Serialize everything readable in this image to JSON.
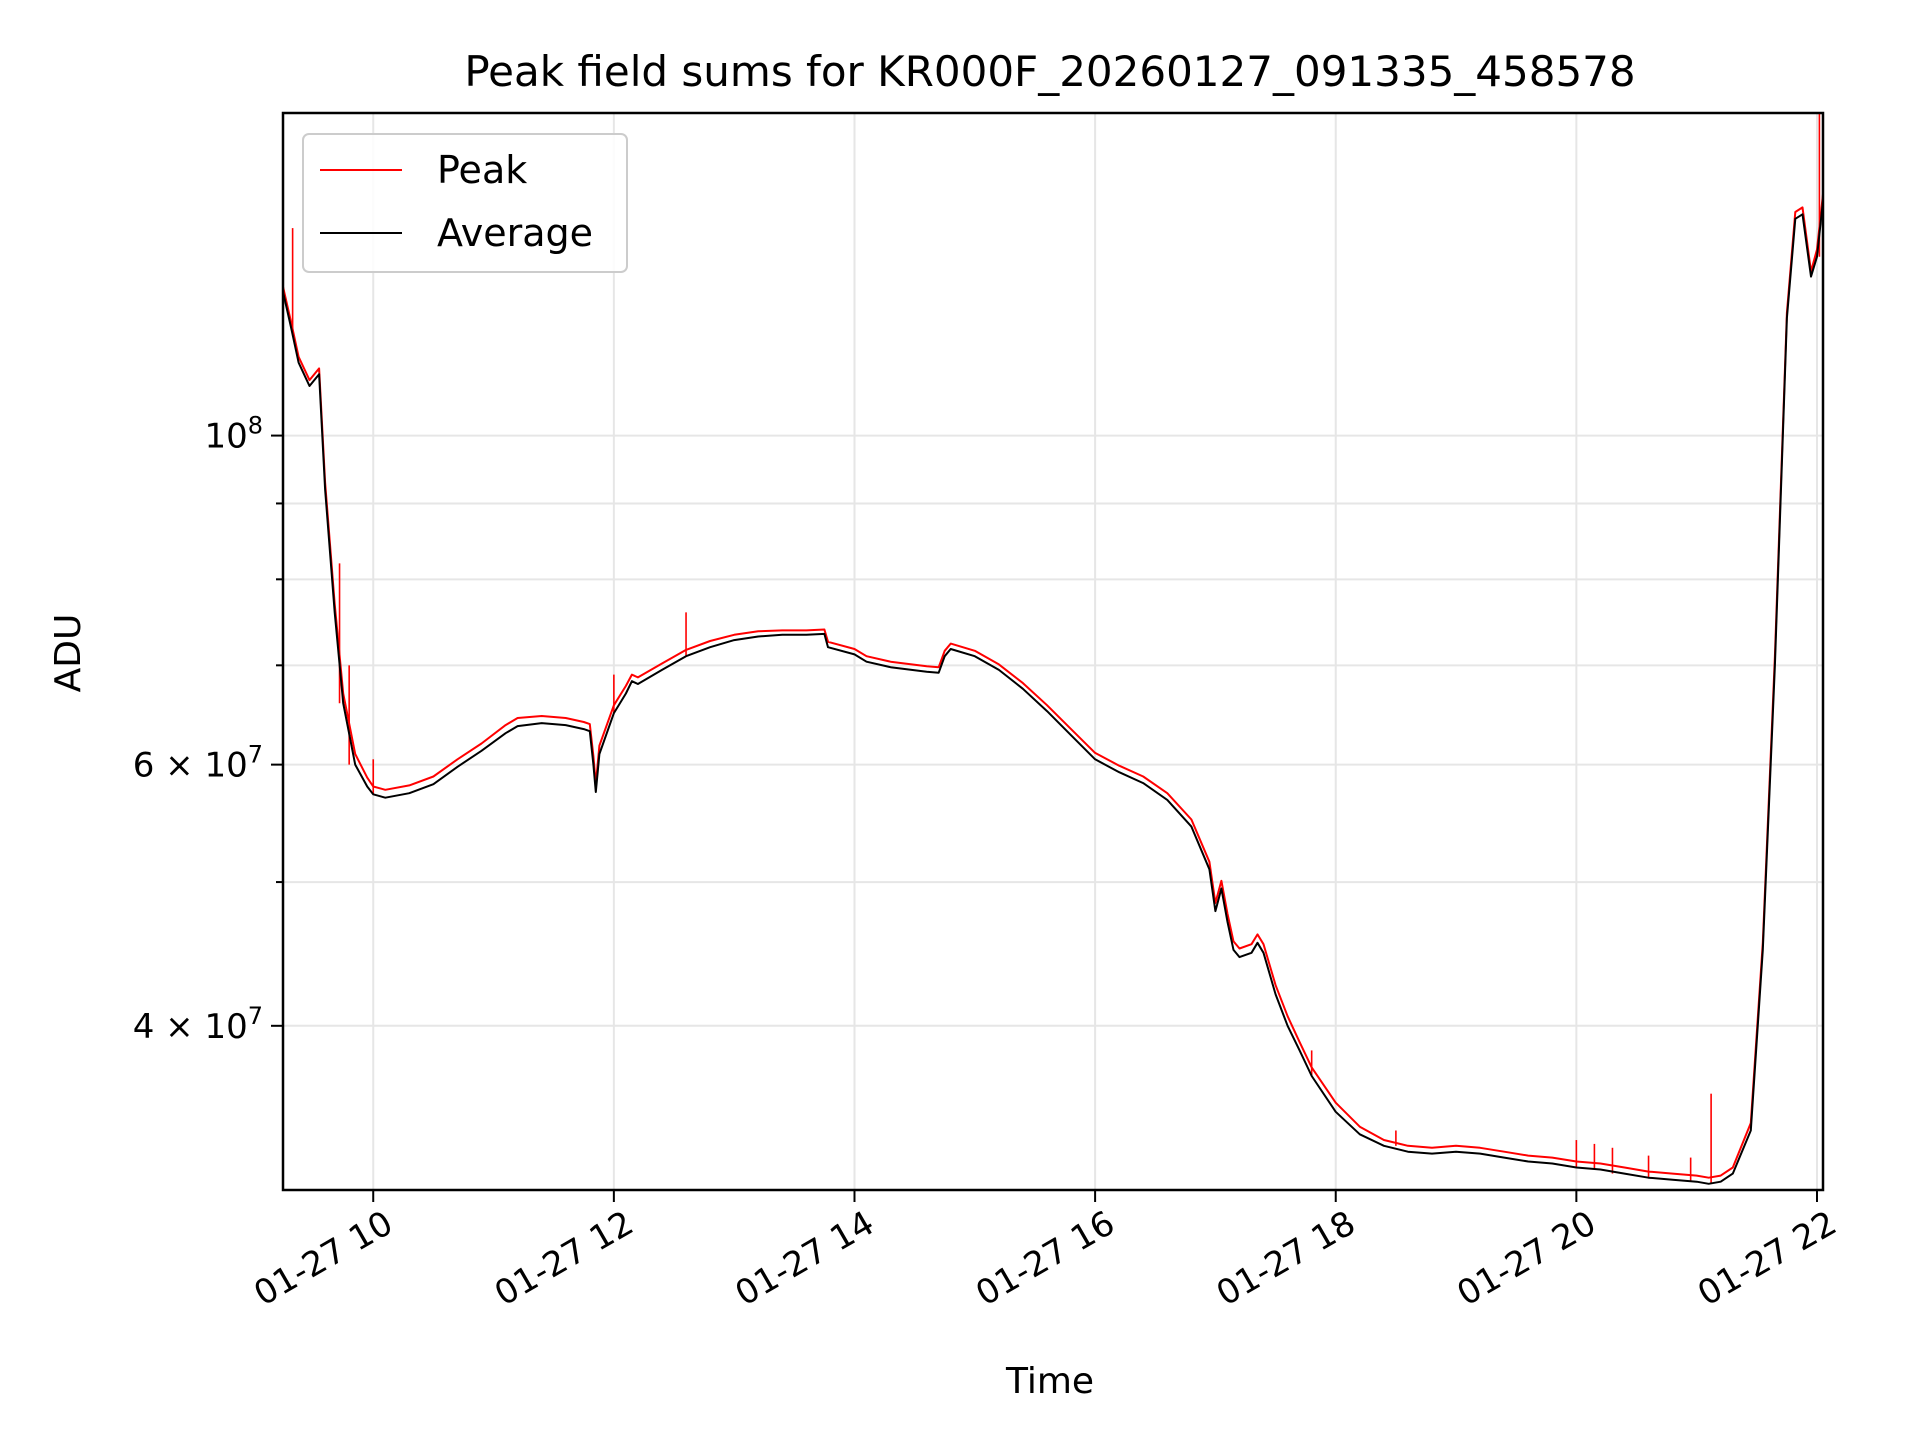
{
  "chart_data": {
    "type": "line",
    "title": "Peak field sums for KR000F_20260127_091335_458578",
    "xlabel": "Time",
    "ylabel": "ADU",
    "yscale": "log",
    "xlim": [
      9.25,
      22.05
    ],
    "ylim": [
      31000000,
      165000000
    ],
    "grid": true,
    "legend_position": "top-left",
    "x_ticks": [
      10,
      12,
      14,
      16,
      18,
      20,
      22
    ],
    "x_tick_labels": [
      "01-27 10",
      "01-27 12",
      "01-27 14",
      "01-27 16",
      "01-27 18",
      "01-27 20",
      "01-27 22"
    ],
    "y_ticks_major": [
      {
        "value": 100000000,
        "mantissa": "",
        "base": "10",
        "exp": "8"
      },
      {
        "value": 60000000,
        "mantissa": "6",
        "base": "10",
        "exp": "7"
      },
      {
        "value": 40000000,
        "mantissa": "4",
        "base": "10",
        "exp": "7"
      }
    ],
    "y_ticks_minor": [
      30000000,
      50000000,
      70000000,
      80000000,
      90000000
    ],
    "series": [
      {
        "name": "Peak",
        "color": "#ff0000"
      },
      {
        "name": "Average",
        "color": "#000000"
      }
    ],
    "x": [
      9.25,
      9.32,
      9.38,
      9.47,
      9.55,
      9.6,
      9.68,
      9.75,
      9.85,
      9.95,
      10.0,
      10.1,
      10.3,
      10.5,
      10.7,
      10.9,
      11.1,
      11.2,
      11.4,
      11.6,
      11.75,
      11.8,
      11.83,
      11.85,
      11.88,
      12.0,
      12.1,
      12.15,
      12.2,
      12.4,
      12.6,
      12.8,
      13.0,
      13.2,
      13.4,
      13.6,
      13.75,
      13.78,
      14.0,
      14.1,
      14.3,
      14.6,
      14.7,
      14.75,
      14.8,
      15.0,
      15.2,
      15.4,
      15.6,
      15.8,
      16.0,
      16.2,
      16.4,
      16.6,
      16.8,
      16.95,
      17.0,
      17.05,
      17.1,
      17.15,
      17.2,
      17.3,
      17.35,
      17.4,
      17.5,
      17.6,
      17.7,
      17.8,
      18.0,
      18.2,
      18.4,
      18.6,
      18.8,
      19.0,
      19.2,
      19.4,
      19.6,
      19.8,
      20.0,
      20.2,
      20.4,
      20.6,
      20.8,
      21.0,
      21.1,
      21.2,
      21.3,
      21.45,
      21.55,
      21.65,
      21.75,
      21.82,
      21.88,
      21.95,
      22.0,
      22.05
    ],
    "average": [
      125000000,
      118000000,
      112000000,
      108000000,
      110000000,
      92000000,
      76000000,
      66000000,
      60000000,
      58000000,
      57300000,
      57000000,
      57400000,
      58200000,
      59800000,
      61300000,
      63000000,
      63700000,
      64000000,
      63800000,
      63400000,
      63200000,
      60000000,
      57500000,
      61000000,
      65000000,
      67000000,
      68300000,
      68000000,
      69500000,
      71000000,
      72000000,
      72800000,
      73200000,
      73400000,
      73400000,
      73500000,
      72000000,
      71200000,
      70400000,
      69800000,
      69300000,
      69200000,
      71000000,
      71800000,
      71000000,
      69500000,
      67500000,
      65200000,
      62800000,
      60500000,
      59300000,
      58300000,
      56800000,
      54500000,
      51000000,
      47800000,
      49500000,
      47000000,
      45000000,
      44500000,
      44800000,
      45500000,
      44800000,
      42000000,
      40000000,
      38500000,
      37000000,
      35000000,
      33800000,
      33200000,
      32900000,
      32800000,
      32900000,
      32800000,
      32600000,
      32400000,
      32300000,
      32100000,
      32000000,
      31800000,
      31600000,
      31500000,
      31400000,
      31300000,
      31400000,
      31800000,
      34000000,
      45000000,
      70000000,
      120000000,
      140000000,
      141000000,
      128000000,
      132000000,
      144000000
    ],
    "peak": [
      126000000,
      119000000,
      113000000,
      109000000,
      111000000,
      93000000,
      77000000,
      67000000,
      61000000,
      58800000,
      58000000,
      57700000,
      58100000,
      58900000,
      60500000,
      62000000,
      63800000,
      64500000,
      64700000,
      64500000,
      64100000,
      63900000,
      60800000,
      58200000,
      61800000,
      65800000,
      67800000,
      69000000,
      68700000,
      70200000,
      71700000,
      72700000,
      73400000,
      73800000,
      73900000,
      73900000,
      74000000,
      72600000,
      71800000,
      71000000,
      70400000,
      69900000,
      69800000,
      71600000,
      72400000,
      71600000,
      70100000,
      68100000,
      65800000,
      63400000,
      61100000,
      59900000,
      58900000,
      57400000,
      55100000,
      51600000,
      48400000,
      50100000,
      47600000,
      45600000,
      45100000,
      45400000,
      46100000,
      45400000,
      42600000,
      40600000,
      39000000,
      37500000,
      35500000,
      34200000,
      33500000,
      33200000,
      33100000,
      33200000,
      33100000,
      32900000,
      32700000,
      32600000,
      32400000,
      32300000,
      32100000,
      31900000,
      31800000,
      31700000,
      31600000,
      31700000,
      32100000,
      34400000,
      45500000,
      71000000,
      121000000,
      141500000,
      142500000,
      129000000,
      133500000,
      145500000
    ],
    "peak_spikes": [
      {
        "x": 9.33,
        "y": 138000000
      },
      {
        "x": 9.72,
        "y": 82000000
      },
      {
        "x": 9.8,
        "y": 70000000
      },
      {
        "x": 10.0,
        "y": 60500000
      },
      {
        "x": 12.0,
        "y": 69000000
      },
      {
        "x": 12.6,
        "y": 76000000
      },
      {
        "x": 17.8,
        "y": 38500000
      },
      {
        "x": 18.5,
        "y": 34000000
      },
      {
        "x": 20.0,
        "y": 33500000
      },
      {
        "x": 20.15,
        "y": 33300000
      },
      {
        "x": 20.3,
        "y": 33100000
      },
      {
        "x": 20.6,
        "y": 32700000
      },
      {
        "x": 20.95,
        "y": 32600000
      },
      {
        "x": 21.12,
        "y": 36000000
      },
      {
        "x": 22.02,
        "y": 165000000
      }
    ]
  }
}
